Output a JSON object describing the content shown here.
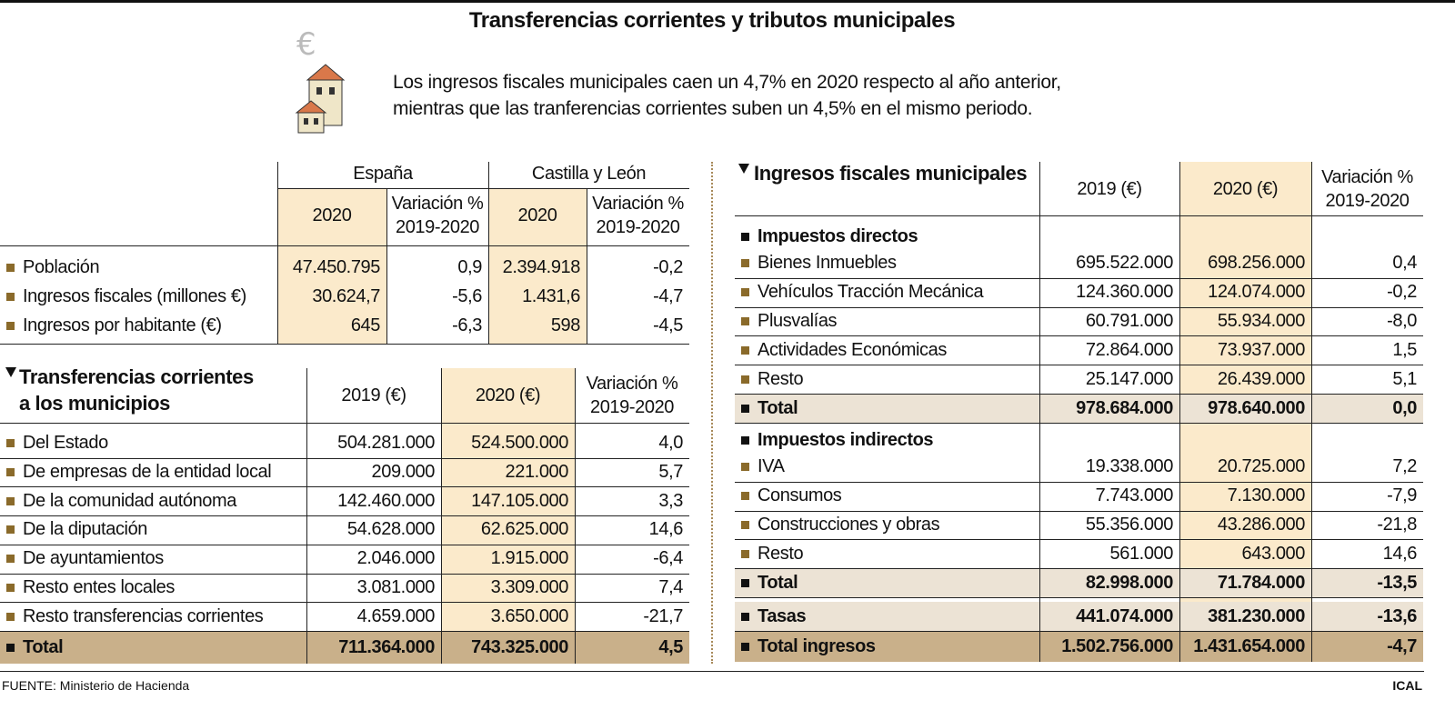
{
  "header": {
    "title": "Transferencias corrientes y tributos municipales",
    "subtitle": [
      "Los ingresos fiscales municipales caen un 4,7% en 2020 respecto al año anterior,",
      "mientras que las tranferencias corrientes suben un 4,5% en el mismo periodo."
    ]
  },
  "summary": {
    "groups": [
      "España",
      "Castilla y León"
    ],
    "columns": [
      [
        "2020"
      ],
      [
        "Variación %",
        "2019-2020"
      ],
      [
        "2020"
      ],
      [
        "Variación %",
        "2019-2020"
      ]
    ],
    "rows": [
      {
        "label": "Población",
        "cells": [
          "47.450.795",
          "0,9",
          "2.394.918",
          "-0,2"
        ]
      },
      {
        "label": "Ingresos fiscales (millones €)",
        "cells": [
          "30.624,7",
          "-5,6",
          "1.431,6",
          "-4,7"
        ]
      },
      {
        "label": "Ingresos por habitante (€)",
        "cells": [
          "645",
          "-6,3",
          "598",
          "-4,5"
        ]
      }
    ]
  },
  "transfers": {
    "title": [
      "Transferencias corrientes",
      "a los municipios"
    ],
    "columns": [
      [
        "2019 (€)"
      ],
      [
        "2020 (€)"
      ],
      [
        "Variación %",
        "2019-2020"
      ]
    ],
    "rows": [
      {
        "label": "Del Estado",
        "cells": [
          "504.281.000",
          "524.500.000",
          "4,0"
        ]
      },
      {
        "label": "De empresas de la entidad local",
        "cells": [
          "209.000",
          "221.000",
          "5,7"
        ]
      },
      {
        "label": "De la comunidad autónoma",
        "cells": [
          "142.460.000",
          "147.105.000",
          "3,3"
        ]
      },
      {
        "label": "De la diputación",
        "cells": [
          "54.628.000",
          "62.625.000",
          "14,6"
        ]
      },
      {
        "label": "De ayuntamientos",
        "cells": [
          "2.046.000",
          "1.915.000",
          "-6,4"
        ]
      },
      {
        "label": "Resto entes locales",
        "cells": [
          "3.081.000",
          "3.309.000",
          "7,4"
        ]
      },
      {
        "label": "Resto transferencias corrientes",
        "cells": [
          "4.659.000",
          "3.650.000",
          "-21,7"
        ]
      }
    ],
    "total": {
      "label": "Total",
      "cells": [
        "711.364.000",
        "743.325.000",
        "4,5"
      ]
    }
  },
  "fiscal": {
    "title": "Ingresos fiscales municipales",
    "columns": [
      [
        "2019 (€)"
      ],
      [
        "2020 (€)"
      ],
      [
        "Variación %",
        "2019-2020"
      ]
    ],
    "sections": [
      {
        "title": "Impuestos directos",
        "rows": [
          {
            "label": "Bienes Inmuebles",
            "cells": [
              "695.522.000",
              "698.256.000",
              "0,4"
            ]
          },
          {
            "label": "Vehículos Tracción Mecánica",
            "cells": [
              "124.360.000",
              "124.074.000",
              "-0,2"
            ]
          },
          {
            "label": "Plusvalías",
            "cells": [
              "60.791.000",
              "55.934.000",
              "-8,0"
            ]
          },
          {
            "label": "Actividades Económicas",
            "cells": [
              "72.864.000",
              "73.937.000",
              "1,5"
            ]
          },
          {
            "label": "Resto",
            "cells": [
              "25.147.000",
              "26.439.000",
              "5,1"
            ]
          }
        ],
        "total": {
          "label": "Total",
          "cells": [
            "978.684.000",
            "978.640.000",
            "0,0"
          ]
        }
      },
      {
        "title": "Impuestos indirectos",
        "rows": [
          {
            "label": "IVA",
            "cells": [
              "19.338.000",
              "20.725.000",
              "7,2"
            ]
          },
          {
            "label": "Consumos",
            "cells": [
              "7.743.000",
              "7.130.000",
              "-7,9"
            ]
          },
          {
            "label": "Construcciones y obras",
            "cells": [
              "55.356.000",
              "43.286.000",
              "-21,8"
            ]
          },
          {
            "label": "Resto",
            "cells": [
              "561.000",
              "643.000",
              "14,6"
            ]
          }
        ],
        "total": {
          "label": "Total",
          "cells": [
            "82.998.000",
            "71.784.000",
            "-13,5"
          ]
        }
      }
    ],
    "tasas": {
      "label": "Tasas",
      "cells": [
        "441.074.000",
        "381.230.000",
        "-13,6"
      ]
    },
    "grand_total": {
      "label": "Total ingresos",
      "cells": [
        "1.502.756.000",
        "1.431.654.000",
        "-4,7"
      ]
    }
  },
  "footer": {
    "source": "FUENTE: Ministerio de Hacienda",
    "credit": "ICAL"
  }
}
